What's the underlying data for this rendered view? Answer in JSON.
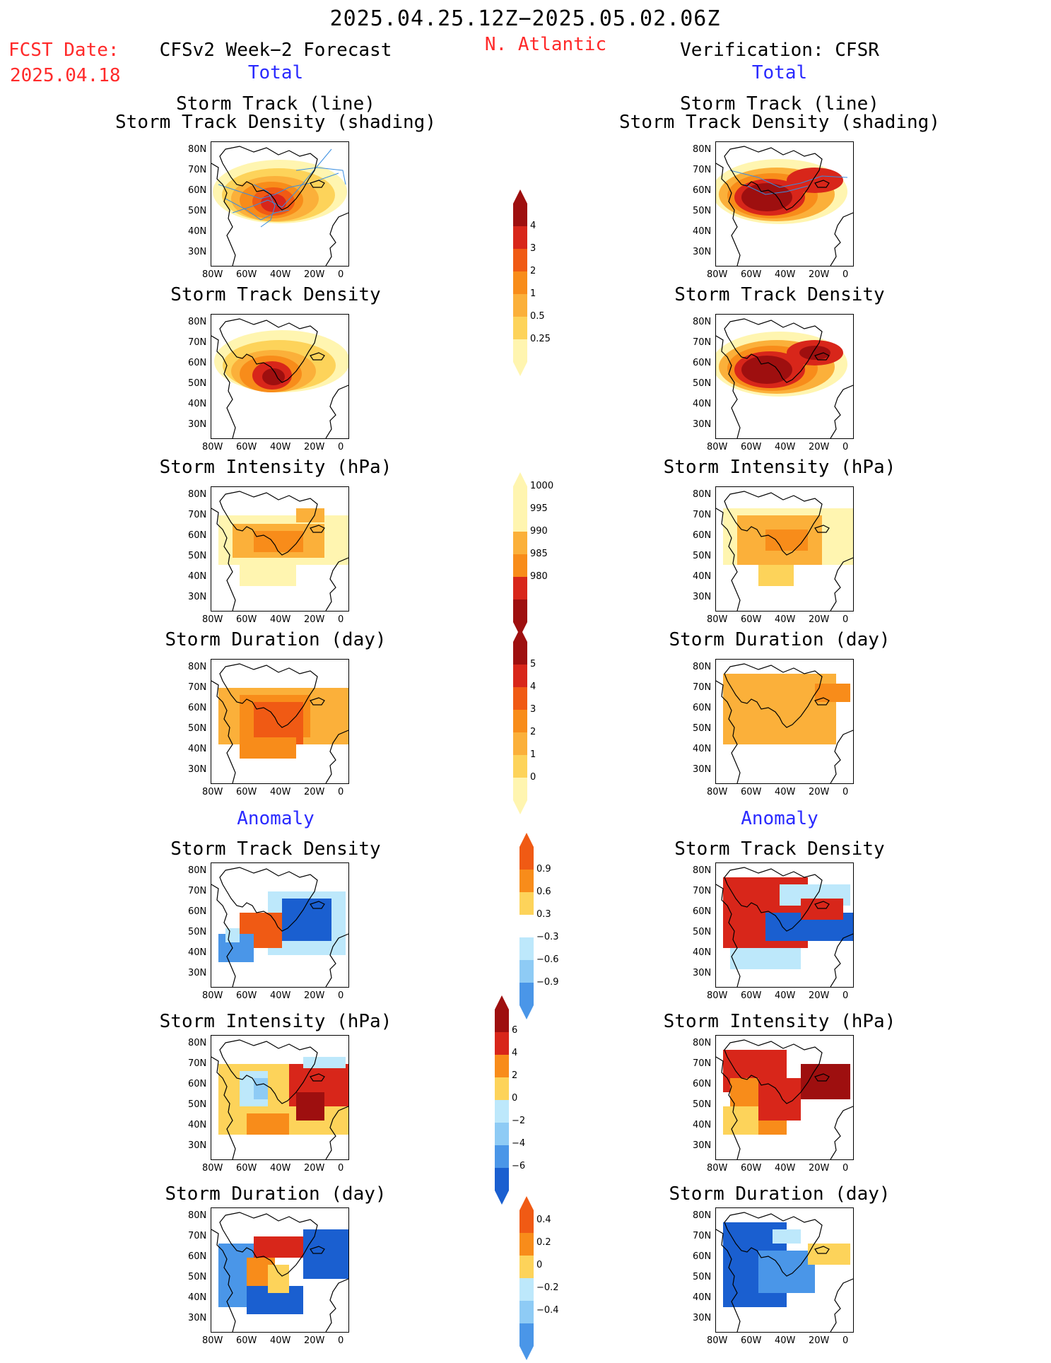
{
  "header": {
    "date_range": "2025.04.25.12Z−2025.05.02.06Z",
    "fcst_label": "FCST Date:",
    "fcst_date": "2025.04.18",
    "region": "N. Atlantic",
    "left_title": "CFSv2 Week−2 Forecast",
    "right_title": "Verification: CFSR",
    "left_total": "Total",
    "right_total": "Total",
    "left_anomaly": "Anomaly",
    "right_anomaly": "Anomaly"
  },
  "axes": {
    "lat_labels": [
      "80N",
      "70N",
      "60N",
      "50N",
      "40N",
      "30N"
    ],
    "lon_labels": [
      "80W",
      "60W",
      "40W",
      "20W",
      "0"
    ]
  },
  "panel_titles": {
    "track_line": "Storm Track (line)",
    "track_shading": "Storm Track Density (shading)",
    "density": "Storm Track Density",
    "intensity": "Storm Intensity (hPa)",
    "duration": "Storm Duration (day)"
  },
  "colorbars": {
    "density_total": [
      "4",
      "3",
      "2",
      "1",
      "0.5",
      "0.25"
    ],
    "intensity_total": [
      "1000",
      "995",
      "990",
      "985",
      "980"
    ],
    "duration_total": [
      "5",
      "4",
      "3",
      "2",
      "1",
      "0"
    ],
    "density_anom": [
      "0.9",
      "0.6",
      "0.3",
      "−0.3",
      "−0.6",
      "−0.9"
    ],
    "intensity_anom": [
      "6",
      "4",
      "2",
      "0",
      "−2",
      "−4",
      "−6"
    ],
    "duration_anom": [
      "0.4",
      "0.2",
      "0",
      "−0.2",
      "−0.4"
    ]
  },
  "colors": {
    "title_red": "#ff2a2a",
    "title_blue": "#2a2aff",
    "yellow_light": "#fff5b0",
    "yellow": "#fdd35a",
    "orange_light": "#fbb03a",
    "orange": "#f88c1a",
    "orange_red": "#f05a14",
    "red": "#d8261a",
    "dark_red": "#9e0f0f",
    "blue_light": "#bde8fb",
    "blue_mid": "#8ecbf5",
    "blue": "#4a96e8",
    "blue_dark": "#1a5fd0"
  }
}
